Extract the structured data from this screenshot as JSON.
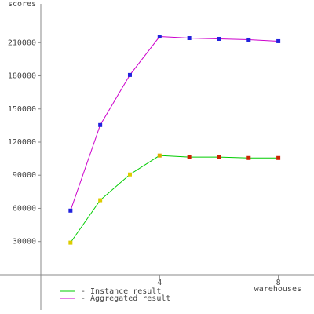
{
  "chart_data": {
    "type": "line",
    "y_label": "scores",
    "x_label": "warehouses",
    "x": [
      1,
      2,
      3,
      4,
      5,
      6,
      7,
      8
    ],
    "series": [
      {
        "name": "- Instance result",
        "color": "#00cc00",
        "values": [
          29000,
          67400,
          90700,
          107800,
          106400,
          106400,
          105600,
          105600
        ],
        "marker_colors": [
          "#ddcc00",
          "#ddcc00",
          "#ddcc00",
          "#ddaa00",
          "#cc2200",
          "#cc2200",
          "#cc2200",
          "#cc2200"
        ]
      },
      {
        "name": "- Aggregated result",
        "color": "#cc00cc",
        "values": [
          58000,
          135400,
          180800,
          215500,
          214100,
          213400,
          212700,
          211300
        ],
        "marker_colors": [
          "#2222dd",
          "#2222dd",
          "#2222dd",
          "#2222dd",
          "#2222dd",
          "#2222dd",
          "#2222dd",
          "#2222dd"
        ]
      }
    ],
    "xlim": [
      0,
      9.2
    ],
    "ylim": [
      -32000,
      245000
    ],
    "xticks": [
      4,
      8
    ],
    "yticks": [
      30000,
      60000,
      90000,
      120000,
      150000,
      180000,
      210000
    ]
  }
}
